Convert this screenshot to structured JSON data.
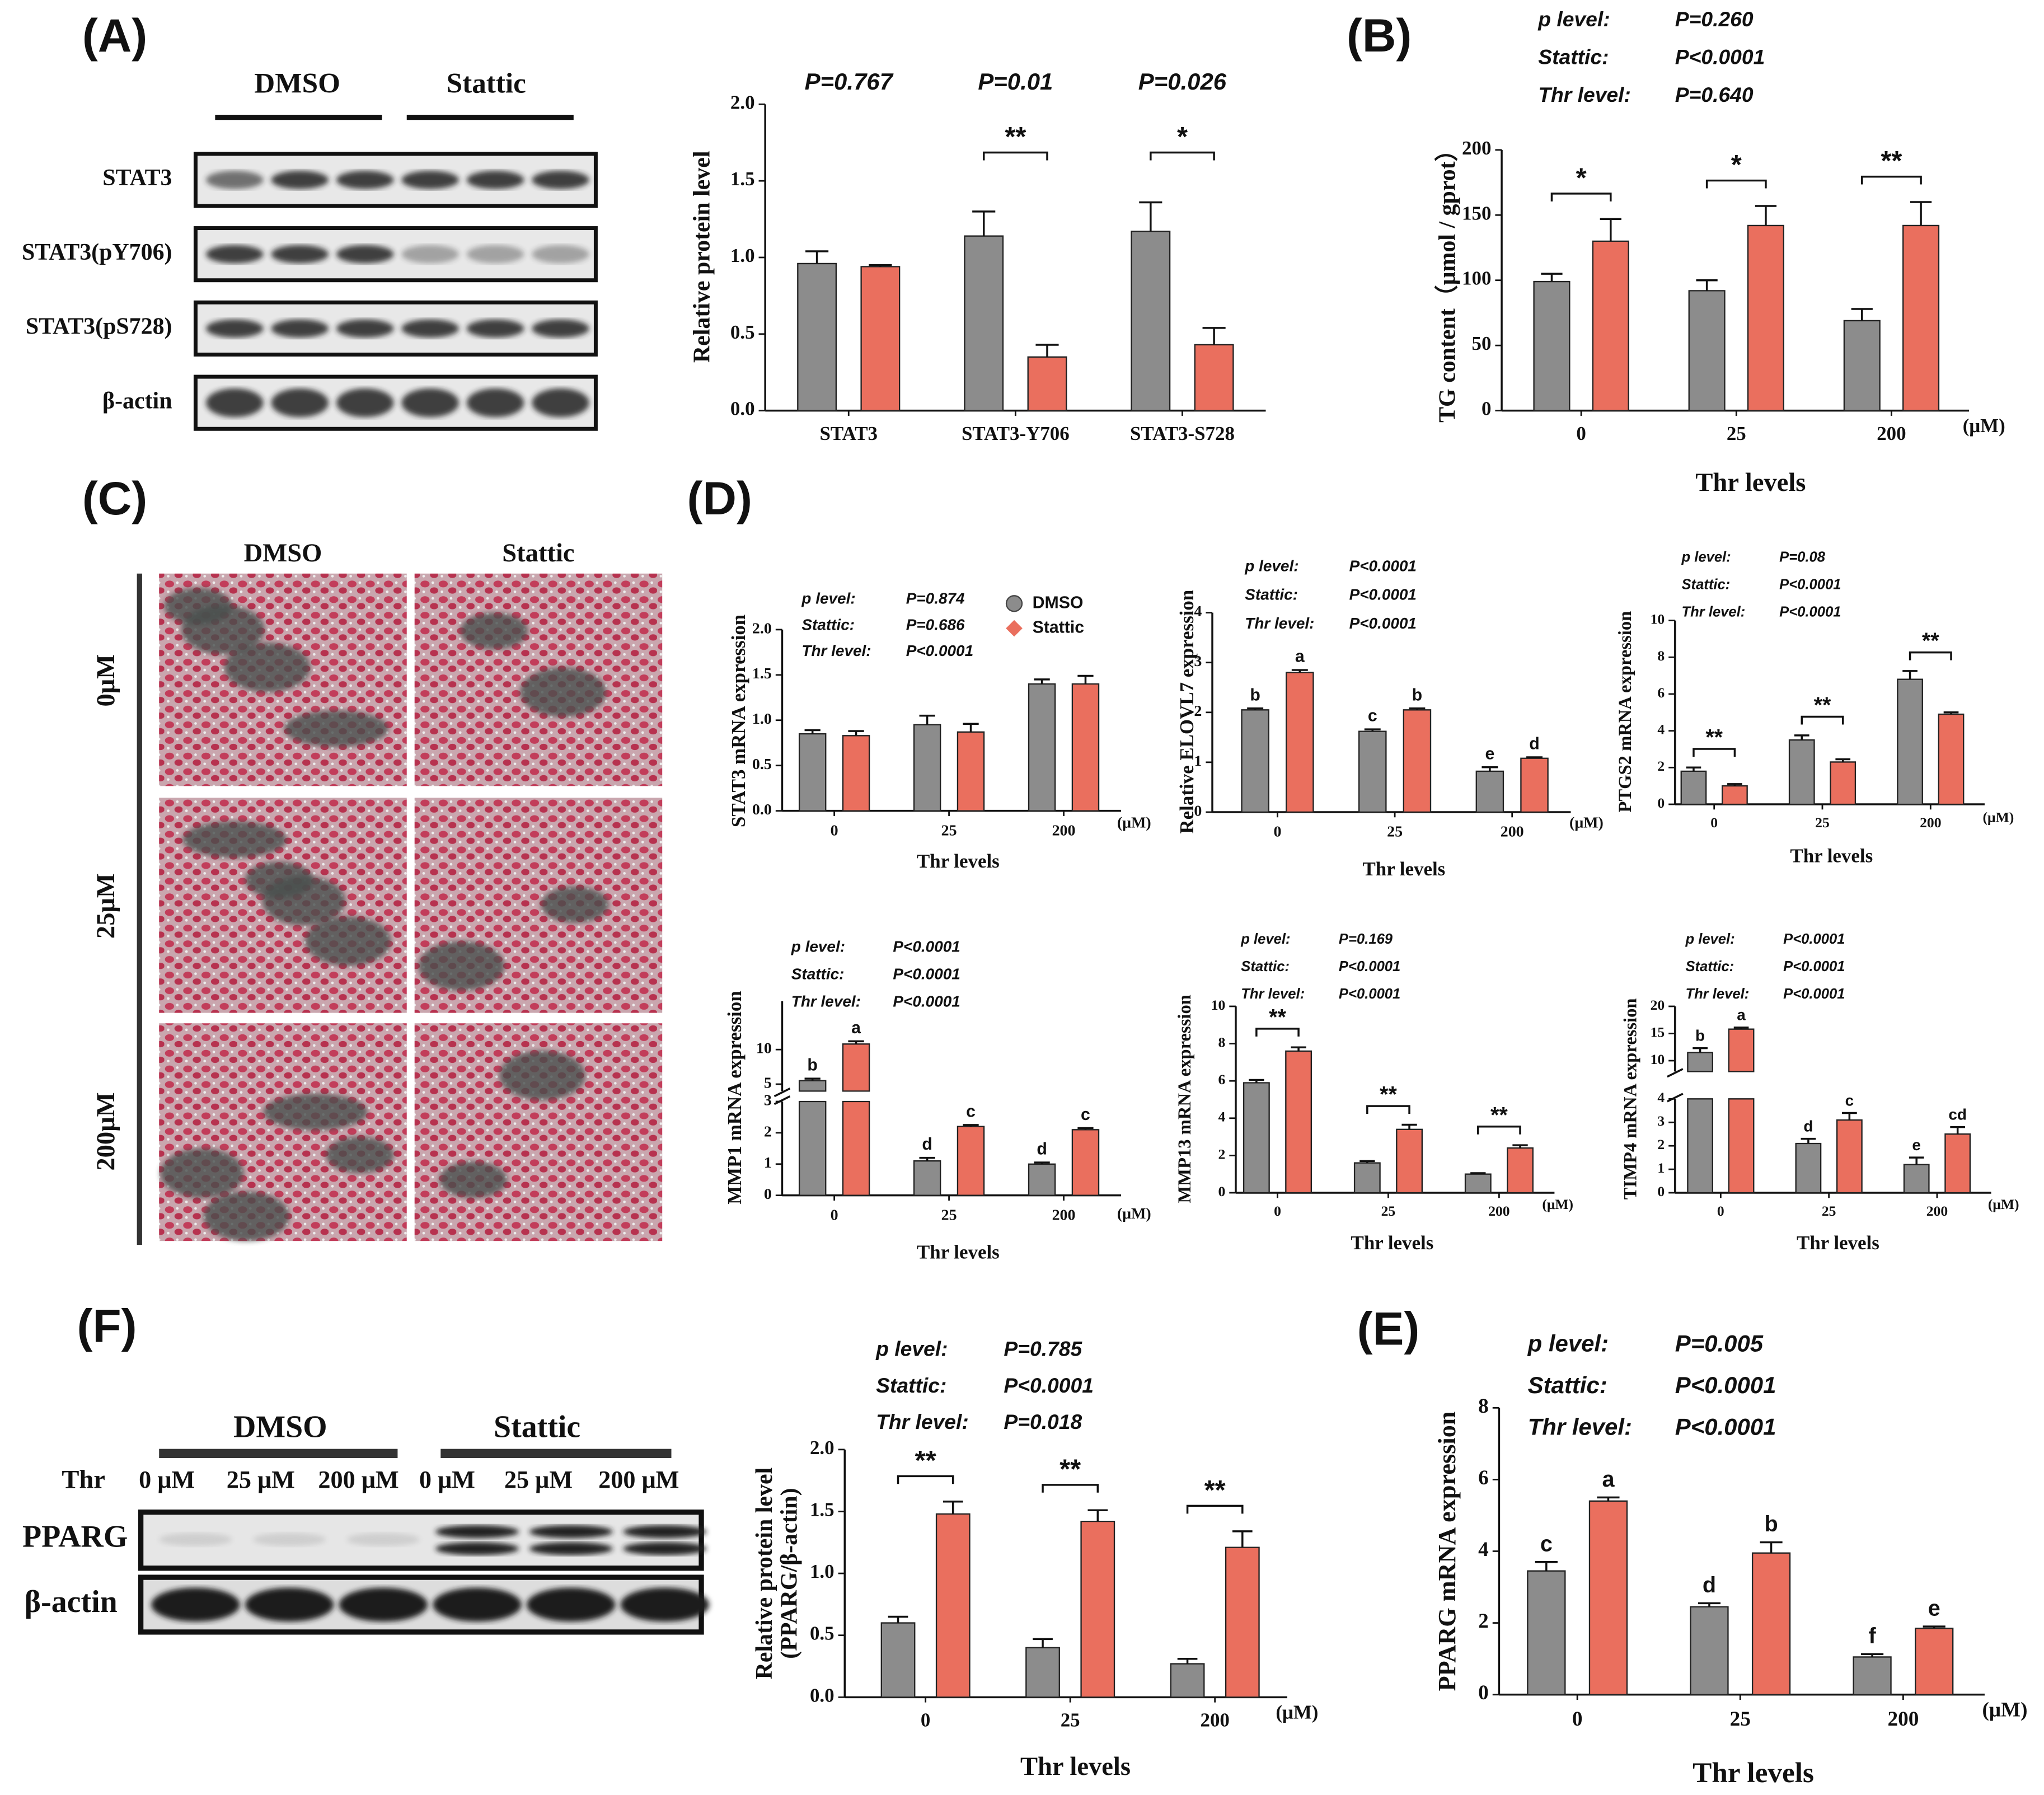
{
  "figure": {
    "panels": [
      "(A)",
      "(B)",
      "(C)",
      "(D)",
      "(F)",
      "(E)"
    ],
    "blot_a": {
      "groups": [
        "DMSO",
        "Stattic"
      ],
      "rows": [
        "STAT3",
        "STAT3(pY706)",
        "STAT3(pS728)",
        "β-actin"
      ]
    },
    "images_c": {
      "columns": [
        "DMSO",
        "Stattic"
      ],
      "rows": [
        "0μM",
        "25μM",
        "200μM"
      ]
    },
    "blot_f": {
      "groups": [
        "DMSO",
        "Stattic"
      ],
      "dose_label": "Thr",
      "lanes": [
        "0 μM",
        "25 μM",
        "200 μM",
        "0 μM",
        "25 μM",
        "200 μM"
      ],
      "rows": [
        "PPARG",
        "β-actin"
      ]
    }
  },
  "chart_data": [
    {
      "type": "bar",
      "ylabel": "Relative protein level",
      "categories": [
        "STAT3",
        "STAT3-Y706",
        "STAT3-S728"
      ],
      "series": [
        {
          "name": "DMSO",
          "color": "#8c8c8c",
          "values": [
            0.96,
            1.14,
            1.17
          ],
          "errors": [
            0.08,
            0.16,
            0.19
          ]
        },
        {
          "name": "Stattic",
          "color": "#ea6f5e",
          "values": [
            0.94,
            0.35,
            0.43
          ],
          "errors": [
            0.01,
            0.08,
            0.11
          ]
        }
      ],
      "ylim": [
        0,
        2
      ],
      "yticks": [
        {
          "value": 0,
          "label": "0.0"
        },
        0.5,
        {
          "value": 1,
          "label": "1.0"
        },
        1.5,
        {
          "value": 2,
          "label": "2.0"
        }
      ],
      "p_values": [
        "P=0.767",
        "P=0.01",
        "P=0.026"
      ],
      "significance": [
        null,
        "**",
        "*"
      ]
    },
    {
      "type": "bar",
      "ylabel": "TG content（μmol / gprot）",
      "xlabel": "Thr  levels",
      "unit": "(μM)",
      "categories": [
        "0",
        "25",
        "200"
      ],
      "series": [
        {
          "name": "DMSO",
          "color": "#8c8c8c",
          "values": [
            99,
            92,
            69
          ],
          "errors": [
            6,
            8,
            9
          ]
        },
        {
          "name": "Stattic",
          "color": "#ea6f5e",
          "values": [
            130,
            142,
            142
          ],
          "errors": [
            17,
            15,
            18
          ]
        }
      ],
      "ylim": [
        0,
        200
      ],
      "yticks": [
        0,
        50,
        100,
        150,
        200
      ],
      "significance": [
        "*",
        "*",
        "**"
      ],
      "stats": [
        {
          "label": "p level:",
          "value": "P=0.260"
        },
        {
          "label": "Stattic:",
          "value": "P<0.0001"
        },
        {
          "label": "Thr level:",
          "value": "P=0.640"
        }
      ]
    },
    {
      "type": "bar",
      "ylabel": "STAT3 mRNA expression",
      "xlabel": "Thr  levels",
      "unit": "(μM)",
      "categories": [
        "0",
        "25",
        "200"
      ],
      "legend": true,
      "series": [
        {
          "name": "DMSO",
          "color": "#8c8c8c",
          "values": [
            0.85,
            0.95,
            1.4
          ],
          "errors": [
            0.04,
            0.1,
            0.05
          ]
        },
        {
          "name": "Stattic",
          "color": "#ea6f5e",
          "values": [
            0.83,
            0.87,
            1.4
          ],
          "errors": [
            0.05,
            0.09,
            0.09
          ]
        }
      ],
      "ylim": [
        0,
        2
      ],
      "yticks": [
        {
          "value": 0,
          "label": "0.0"
        },
        0.5,
        {
          "value": 1,
          "label": "1.0"
        },
        1.5,
        {
          "value": 2,
          "label": "2.0"
        }
      ],
      "stats": [
        {
          "label": "p level:",
          "value": "P=0.874"
        },
        {
          "label": "Stattic:",
          "value": "P=0.686"
        },
        {
          "label": "Thr level:",
          "value": "P<0.0001"
        }
      ]
    },
    {
      "type": "bar",
      "ylabel": "Relative ELOVL7 expression",
      "xlabel": "Thr  levels",
      "unit": "(μM)",
      "categories": [
        "0",
        "25",
        "200"
      ],
      "series": [
        {
          "name": "DMSO",
          "color": "#8c8c8c",
          "values": [
            2.05,
            1.62,
            0.82
          ],
          "errors": [
            0.03,
            0.04,
            0.08
          ],
          "letters": [
            "b",
            "c",
            "e"
          ]
        },
        {
          "name": "Stattic",
          "color": "#ea6f5e",
          "values": [
            2.8,
            2.05,
            1.08
          ],
          "errors": [
            0.05,
            0.03,
            0.02
          ],
          "letters": [
            "a",
            "b",
            "d"
          ]
        }
      ],
      "ylim": [
        0,
        4
      ],
      "yticks": [
        0,
        1,
        2,
        3,
        4
      ],
      "stats": [
        {
          "label": "p level:",
          "value": "P<0.0001"
        },
        {
          "label": "Stattic:",
          "value": "P<0.0001"
        },
        {
          "label": "Thr level:",
          "value": "P<0.0001"
        }
      ]
    },
    {
      "type": "bar",
      "ylabel": "PTGS2 mRNA expression",
      "xlabel": "Thr  levels",
      "unit": "(μM)",
      "categories": [
        "0",
        "25",
        "200"
      ],
      "series": [
        {
          "name": "DMSO",
          "color": "#8c8c8c",
          "values": [
            1.8,
            3.5,
            6.8
          ],
          "errors": [
            0.2,
            0.25,
            0.45
          ]
        },
        {
          "name": "Stattic",
          "color": "#ea6f5e",
          "values": [
            1.0,
            2.3,
            4.9
          ],
          "errors": [
            0.1,
            0.15,
            0.1
          ]
        }
      ],
      "ylim": [
        0,
        10
      ],
      "yticks": [
        0,
        2,
        4,
        6,
        8,
        10
      ],
      "significance": [
        "**",
        "**",
        "**"
      ],
      "stats": [
        {
          "label": "p level:",
          "value": "P=0.08"
        },
        {
          "label": "Stattic:",
          "value": "P<0.0001"
        },
        {
          "label": "Thr level:",
          "value": "P<0.0001"
        }
      ]
    },
    {
      "type": "bar",
      "ylabel": "MMP1 mRNA expression",
      "xlabel": "Thr  levels",
      "unit": "(μM)",
      "categories": [
        "0",
        "25",
        "200"
      ],
      "series": [
        {
          "name": "DMSO",
          "color": "#8c8c8c",
          "values": [
            5.5,
            1.1,
            1.0
          ],
          "errors": [
            0.3,
            0.1,
            0.05
          ],
          "letters": [
            "b",
            "d",
            "d"
          ]
        },
        {
          "name": "Stattic",
          "color": "#ea6f5e",
          "values": [
            10.8,
            2.2,
            2.1
          ],
          "errors": [
            0.4,
            0.05,
            0.05
          ],
          "letters": [
            "a",
            "c",
            "c"
          ]
        }
      ],
      "ylim": [
        [
          0,
          3
        ],
        [
          4,
          17
        ]
      ],
      "yticks": [
        0,
        1,
        2,
        3,
        5,
        10
      ],
      "stats": [
        {
          "label": "p level:",
          "value": "P<0.0001"
        },
        {
          "label": "Stattic:",
          "value": "P<0.0001"
        },
        {
          "label": "Thr level:",
          "value": "P<0.0001"
        }
      ]
    },
    {
      "type": "bar",
      "ylabel": "MMP13 mRNA expression",
      "xlabel": "Thr  levels",
      "unit": "(μM)",
      "categories": [
        "0",
        "25",
        "200"
      ],
      "series": [
        {
          "name": "DMSO",
          "color": "#8c8c8c",
          "values": [
            5.9,
            1.6,
            1.0
          ],
          "errors": [
            0.15,
            0.1,
            0.05
          ]
        },
        {
          "name": "Stattic",
          "color": "#ea6f5e",
          "values": [
            7.6,
            3.4,
            2.4
          ],
          "errors": [
            0.2,
            0.25,
            0.15
          ]
        }
      ],
      "ylim": [
        0,
        10
      ],
      "yticks": [
        0,
        2,
        4,
        6,
        8,
        10
      ],
      "significance": [
        "**",
        "**",
        "**"
      ],
      "stats": [
        {
          "label": "p level:",
          "value": "P=0.169"
        },
        {
          "label": "Stattic:",
          "value": "P<0.0001"
        },
        {
          "label": "Thr level:",
          "value": "P<0.0001"
        }
      ]
    },
    {
      "type": "bar",
      "ylabel": "TIMP4 mRNA expression",
      "xlabel": "Thr  levels",
      "unit": "(μM)",
      "categories": [
        "0",
        "25",
        "200"
      ],
      "series": [
        {
          "name": "DMSO",
          "color": "#8c8c8c",
          "values": [
            11.5,
            2.1,
            1.2
          ],
          "errors": [
            0.8,
            0.2,
            0.3
          ],
          "letters": [
            "b",
            "d",
            "e"
          ]
        },
        {
          "name": "Stattic",
          "color": "#ea6f5e",
          "values": [
            15.8,
            3.1,
            2.5
          ],
          "errors": [
            0.3,
            0.3,
            0.3
          ],
          "letters": [
            "a",
            "c",
            "cd"
          ]
        }
      ],
      "ylim": [
        [
          0,
          4
        ],
        [
          8,
          20
        ]
      ],
      "yticks": [
        0,
        1,
        2,
        3,
        4,
        10,
        15,
        20
      ],
      "stats": [
        {
          "label": "p level:",
          "value": "P<0.0001"
        },
        {
          "label": "Stattic:",
          "value": "P<0.0001"
        },
        {
          "label": "Thr level:",
          "value": "P<0.0001"
        }
      ]
    },
    {
      "type": "bar",
      "ylabel": [
        "Relative protein level",
        "(PPARG/β-actin)"
      ],
      "xlabel": "Thr  levels",
      "unit": "(μM)",
      "categories": [
        "0",
        "25",
        "200"
      ],
      "series": [
        {
          "name": "DMSO",
          "color": "#8c8c8c",
          "values": [
            0.6,
            0.4,
            0.27
          ],
          "errors": [
            0.05,
            0.07,
            0.04
          ]
        },
        {
          "name": "Stattic",
          "color": "#ea6f5e",
          "values": [
            1.48,
            1.42,
            1.21
          ],
          "errors": [
            0.1,
            0.09,
            0.13
          ]
        }
      ],
      "ylim": [
        0,
        2
      ],
      "yticks": [
        {
          "value": 0,
          "label": "0.0"
        },
        0.5,
        {
          "value": 1,
          "label": "1.0"
        },
        1.5,
        {
          "value": 2,
          "label": "2.0"
        }
      ],
      "significance": [
        "**",
        "**",
        "**"
      ],
      "stats": [
        {
          "label": "p level:",
          "value": "P=0.785"
        },
        {
          "label": "Stattic:",
          "value": "P<0.0001"
        },
        {
          "label": "Thr level:",
          "value": "P=0.018"
        }
      ]
    },
    {
      "type": "bar",
      "ylabel": "PPARG mRNA expression",
      "xlabel": "Thr  levels",
      "unit": "(μM)",
      "categories": [
        "0",
        "25",
        "200"
      ],
      "series": [
        {
          "name": "DMSO",
          "color": "#8c8c8c",
          "values": [
            3.45,
            2.45,
            1.05
          ],
          "errors": [
            0.25,
            0.1,
            0.08
          ],
          "letters": [
            "c",
            "d",
            "f"
          ]
        },
        {
          "name": "Stattic",
          "color": "#ea6f5e",
          "values": [
            5.4,
            3.95,
            1.85
          ],
          "errors": [
            0.1,
            0.3,
            0.05
          ],
          "letters": [
            "a",
            "b",
            "e"
          ]
        }
      ],
      "ylim": [
        0,
        8
      ],
      "yticks": [
        0,
        2,
        4,
        6,
        8
      ],
      "stats": [
        {
          "label": "p level:",
          "value": "P=0.005"
        },
        {
          "label": "Stattic:",
          "value": "P<0.0001"
        },
        {
          "label": "Thr level:",
          "value": "P<0.0001"
        }
      ]
    }
  ]
}
